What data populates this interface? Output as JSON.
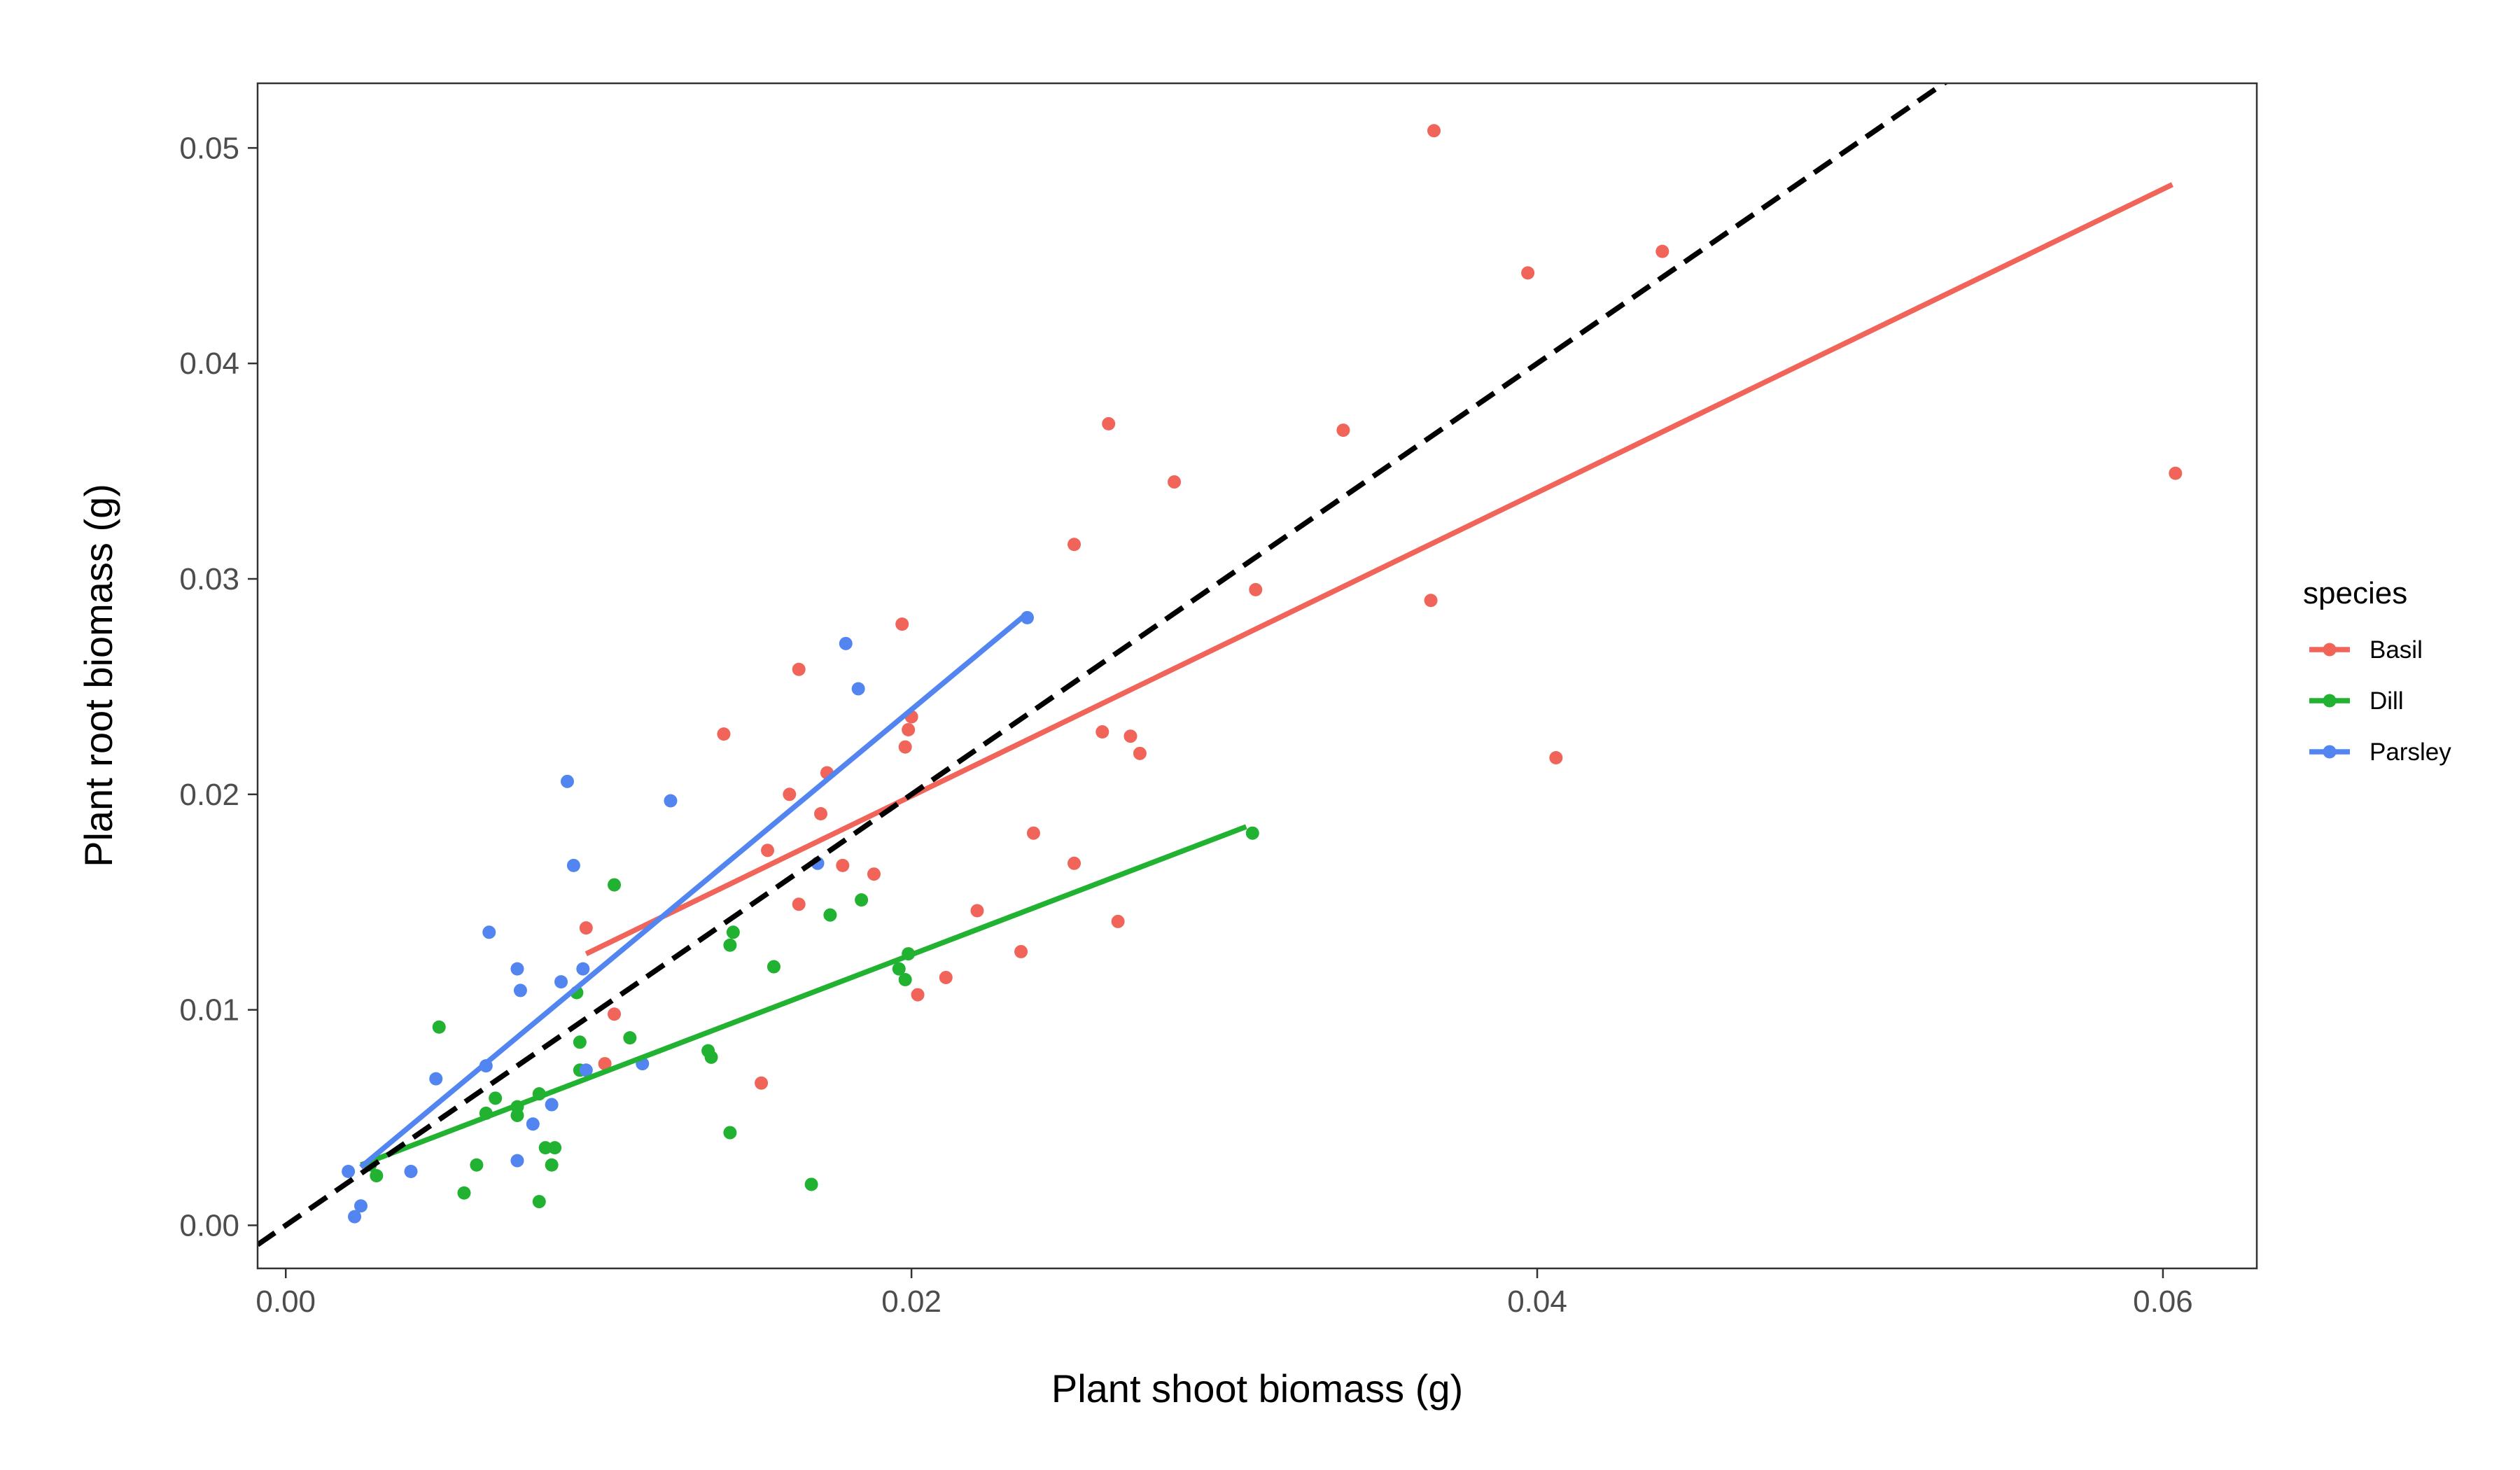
{
  "chart_data": {
    "type": "scatter",
    "title": "",
    "xlabel": "Plant shoot biomass (g)",
    "ylabel": "Plant root biomass (g)",
    "xlim": [
      -0.0009,
      0.063
    ],
    "ylim": [
      -0.002,
      0.053
    ],
    "x_ticks": [
      0.0,
      0.02,
      0.04,
      0.06
    ],
    "x_tick_labels": [
      "0.00",
      "0.02",
      "0.04",
      "0.06"
    ],
    "y_ticks": [
      0.0,
      0.01,
      0.02,
      0.03,
      0.04,
      0.05
    ],
    "y_tick_labels": [
      "0.00",
      "0.01",
      "0.02",
      "0.03",
      "0.04",
      "0.05"
    ],
    "grid": false,
    "legend": {
      "title": "species",
      "position": "right"
    },
    "reference_line": {
      "style": "dashed",
      "color": "#000000",
      "points": [
        [
          -0.0009,
          -0.0009
        ],
        [
          0.0533,
          0.0533
        ]
      ]
    },
    "series": [
      {
        "name": "Basil",
        "color": "#F0645A",
        "fit": [
          [
            0.0096,
            0.0126
          ],
          [
            0.0603,
            0.0483
          ]
        ],
        "points": [
          [
            0.0367,
            0.0508
          ],
          [
            0.044,
            0.0452
          ],
          [
            0.0397,
            0.0442
          ],
          [
            0.0263,
            0.0372
          ],
          [
            0.0338,
            0.0369
          ],
          [
            0.0604,
            0.0349
          ],
          [
            0.0284,
            0.0345
          ],
          [
            0.0252,
            0.0316
          ],
          [
            0.031,
            0.0295
          ],
          [
            0.0366,
            0.029
          ],
          [
            0.0197,
            0.0279
          ],
          [
            0.0164,
            0.0258
          ],
          [
            0.02,
            0.0236
          ],
          [
            0.0199,
            0.023
          ],
          [
            0.014,
            0.0228
          ],
          [
            0.0261,
            0.0229
          ],
          [
            0.027,
            0.0227
          ],
          [
            0.0198,
            0.0222
          ],
          [
            0.0273,
            0.0219
          ],
          [
            0.0406,
            0.0217
          ],
          [
            0.0173,
            0.021
          ],
          [
            0.0161,
            0.02
          ],
          [
            0.0171,
            0.0191
          ],
          [
            0.0239,
            0.0182
          ],
          [
            0.0154,
            0.0174
          ],
          [
            0.0252,
            0.0168
          ],
          [
            0.0178,
            0.0167
          ],
          [
            0.0188,
            0.0163
          ],
          [
            0.0164,
            0.0149
          ],
          [
            0.0221,
            0.0146
          ],
          [
            0.0266,
            0.0141
          ],
          [
            0.0096,
            0.0138
          ],
          [
            0.0235,
            0.0127
          ],
          [
            0.0211,
            0.0115
          ],
          [
            0.0202,
            0.0107
          ],
          [
            0.0105,
            0.0098
          ],
          [
            0.0102,
            0.0075
          ],
          [
            0.0152,
            0.0066
          ]
        ]
      },
      {
        "name": "Dill",
        "color": "#22B232",
        "fit": [
          [
            0.0024,
            0.0028
          ],
          [
            0.0307,
            0.0185
          ]
        ],
        "points": [
          [
            0.0309,
            0.0182
          ],
          [
            0.0105,
            0.0158
          ],
          [
            0.0184,
            0.0151
          ],
          [
            0.0174,
            0.0144
          ],
          [
            0.0143,
            0.0136
          ],
          [
            0.0142,
            0.013
          ],
          [
            0.0199,
            0.0126
          ],
          [
            0.0156,
            0.012
          ],
          [
            0.0196,
            0.0119
          ],
          [
            0.0198,
            0.0114
          ],
          [
            0.0093,
            0.0108
          ],
          [
            0.0049,
            0.0092
          ],
          [
            0.011,
            0.0087
          ],
          [
            0.0094,
            0.0085
          ],
          [
            0.0135,
            0.0081
          ],
          [
            0.0136,
            0.0078
          ],
          [
            0.0094,
            0.0072
          ],
          [
            0.0081,
            0.0061
          ],
          [
            0.0067,
            0.0059
          ],
          [
            0.0074,
            0.0055
          ],
          [
            0.0064,
            0.0052
          ],
          [
            0.0074,
            0.0051
          ],
          [
            0.0142,
            0.0043
          ],
          [
            0.0083,
            0.0036
          ],
          [
            0.0086,
            0.0036
          ],
          [
            0.0027,
            0.0028
          ],
          [
            0.0061,
            0.0028
          ],
          [
            0.0085,
            0.0028
          ],
          [
            0.0029,
            0.0023
          ],
          [
            0.0168,
            0.0019
          ],
          [
            0.0057,
            0.0015
          ],
          [
            0.0081,
            0.0011
          ]
        ]
      },
      {
        "name": "Parsley",
        "color": "#5285F0",
        "fit": [
          [
            0.0024,
            0.0027
          ],
          [
            0.0237,
            0.0284
          ]
        ],
        "points": [
          [
            0.0237,
            0.0282
          ],
          [
            0.0179,
            0.027
          ],
          [
            0.0183,
            0.0249
          ],
          [
            0.009,
            0.0206
          ],
          [
            0.0123,
            0.0197
          ],
          [
            0.0092,
            0.0167
          ],
          [
            0.017,
            0.0168
          ],
          [
            0.0065,
            0.0136
          ],
          [
            0.0074,
            0.0119
          ],
          [
            0.0095,
            0.0119
          ],
          [
            0.0088,
            0.0113
          ],
          [
            0.0075,
            0.0109
          ],
          [
            0.0114,
            0.0075
          ],
          [
            0.0064,
            0.0074
          ],
          [
            0.0096,
            0.0072
          ],
          [
            0.0048,
            0.0068
          ],
          [
            0.0085,
            0.0056
          ],
          [
            0.0079,
            0.0047
          ],
          [
            0.0074,
            0.003
          ],
          [
            0.004,
            0.0025
          ],
          [
            0.002,
            0.0025
          ],
          [
            0.0024,
            0.0009
          ],
          [
            0.0022,
            0.0004
          ]
        ]
      }
    ]
  }
}
